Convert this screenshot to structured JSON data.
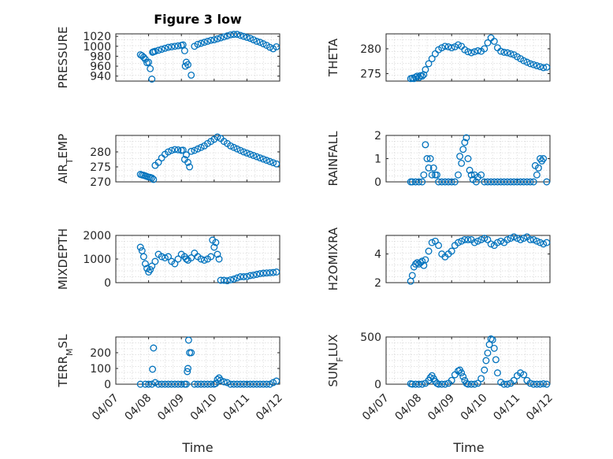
{
  "figure": {
    "title": "Figure 3 low",
    "marker_color": "#0072BD"
  },
  "chart_data": [
    {
      "type": "scatter",
      "ylabel": "PRESSURE",
      "title": "Figure 3 low",
      "xlim": [
        0,
        5
      ],
      "ylim": [
        930,
        1025
      ],
      "yticks": [
        940,
        960,
        980,
        1000,
        1020
      ],
      "grid": true,
      "x": [
        0.75,
        0.8,
        0.85,
        0.9,
        0.95,
        1.0,
        1.05,
        1.1,
        1.12,
        1.15,
        1.2,
        1.3,
        1.4,
        1.5,
        1.6,
        1.7,
        1.8,
        1.9,
        2.0,
        2.05,
        2.1,
        2.12,
        2.15,
        2.2,
        2.3,
        2.4,
        2.5,
        2.6,
        2.7,
        2.8,
        2.9,
        3.0,
        3.1,
        3.2,
        3.3,
        3.4,
        3.5,
        3.6,
        3.7,
        3.8,
        3.9,
        4.0,
        4.1,
        4.2,
        4.3,
        4.4,
        4.5,
        4.6,
        4.7,
        4.8,
        4.9
      ],
      "y": [
        983,
        981,
        978,
        974,
        967,
        968,
        955,
        934,
        988,
        989,
        990,
        992,
        994,
        996,
        998,
        999,
        1000,
        1001,
        1002,
        1003,
        991,
        960,
        968,
        963,
        942,
        1000,
        1004,
        1006,
        1008,
        1010,
        1012,
        1013,
        1015,
        1017,
        1019,
        1021,
        1023,
        1024,
        1024,
        1022,
        1020,
        1018,
        1016,
        1013,
        1010,
        1008,
        1005,
        1002,
        998,
        995,
        999
      ]
    },
    {
      "type": "scatter",
      "ylabel": "THETA",
      "xlim": [
        0,
        5
      ],
      "ylim": [
        273.5,
        283
      ],
      "yticks": [
        275,
        280
      ],
      "grid": true,
      "x": [
        0.75,
        0.8,
        0.85,
        0.9,
        0.95,
        1.0,
        1.05,
        1.1,
        1.15,
        1.2,
        1.3,
        1.4,
        1.5,
        1.6,
        1.7,
        1.8,
        1.9,
        2.0,
        2.1,
        2.2,
        2.3,
        2.4,
        2.5,
        2.6,
        2.7,
        2.8,
        2.9,
        3.0,
        3.1,
        3.2,
        3.3,
        3.4,
        3.5,
        3.6,
        3.7,
        3.8,
        3.9,
        4.0,
        4.1,
        4.2,
        4.3,
        4.4,
        4.5,
        4.6,
        4.7,
        4.8,
        4.9
      ],
      "y": [
        274.0,
        274.1,
        274.0,
        274.3,
        274.5,
        274.2,
        274.6,
        274.5,
        274.8,
        275.8,
        277.0,
        278.0,
        279.0,
        279.8,
        280.2,
        280.5,
        280.4,
        280.2,
        280.4,
        280.8,
        280.5,
        279.8,
        279.4,
        279.2,
        279.4,
        279.6,
        279.5,
        280.0,
        281.2,
        282.2,
        281.5,
        280.2,
        279.5,
        279.3,
        279.2,
        279.0,
        278.8,
        278.4,
        278.0,
        277.6,
        277.3,
        277.0,
        276.8,
        276.6,
        276.4,
        276.2,
        276.3
      ]
    },
    {
      "type": "scatter",
      "ylabel": "AIR_TEMP",
      "xlim": [
        0,
        5
      ],
      "ylim": [
        270,
        285.5
      ],
      "yticks": [
        270,
        275,
        280
      ],
      "grid": true,
      "x": [
        0.75,
        0.8,
        0.85,
        0.9,
        0.95,
        1.0,
        1.05,
        1.1,
        1.15,
        1.2,
        1.3,
        1.4,
        1.5,
        1.6,
        1.7,
        1.8,
        1.9,
        2.0,
        2.05,
        2.1,
        2.15,
        2.2,
        2.25,
        2.3,
        2.4,
        2.5,
        2.6,
        2.7,
        2.8,
        2.9,
        3.0,
        3.1,
        3.2,
        3.3,
        3.4,
        3.5,
        3.6,
        3.7,
        3.8,
        3.9,
        4.0,
        4.1,
        4.2,
        4.3,
        4.4,
        4.5,
        4.6,
        4.7,
        4.8,
        4.9
      ],
      "y": [
        272.5,
        272.3,
        272.2,
        272.0,
        271.8,
        271.6,
        271.5,
        271.3,
        270.8,
        275.5,
        276.5,
        278.0,
        279.2,
        280.0,
        280.5,
        280.8,
        280.7,
        280.5,
        280.6,
        277.5,
        279.0,
        276.5,
        275.0,
        280.2,
        280.5,
        281.0,
        281.5,
        282.0,
        282.8,
        283.5,
        284.2,
        285.0,
        284.5,
        283.5,
        282.8,
        282.0,
        281.5,
        281.0,
        280.5,
        280.0,
        279.6,
        279.2,
        278.8,
        278.4,
        278.0,
        277.6,
        277.2,
        276.8,
        276.4,
        276.0
      ]
    },
    {
      "type": "scatter",
      "ylabel": "RAINFALL",
      "xlim": [
        0,
        5
      ],
      "ylim": [
        0,
        2
      ],
      "yticks": [
        0,
        1,
        2
      ],
      "grid": true,
      "x": [
        0.75,
        0.8,
        0.9,
        1.0,
        1.1,
        1.15,
        1.2,
        1.25,
        1.3,
        1.35,
        1.4,
        1.45,
        1.5,
        1.55,
        1.6,
        1.7,
        1.8,
        1.9,
        2.0,
        2.1,
        2.2,
        2.25,
        2.3,
        2.35,
        2.4,
        2.45,
        2.5,
        2.55,
        2.6,
        2.65,
        2.7,
        2.75,
        2.8,
        2.9,
        3.0,
        3.1,
        3.2,
        3.3,
        3.4,
        3.5,
        3.6,
        3.7,
        3.8,
        3.9,
        4.0,
        4.1,
        4.2,
        4.3,
        4.4,
        4.5,
        4.55,
        4.6,
        4.65,
        4.7,
        4.75,
        4.8,
        4.9
      ],
      "y": [
        0,
        0,
        0,
        0,
        0,
        0.3,
        1.6,
        1.0,
        0.6,
        1.0,
        0.3,
        0.6,
        0.3,
        0.3,
        0,
        0,
        0,
        0,
        0,
        0,
        0.3,
        1.1,
        0.8,
        1.4,
        1.7,
        1.9,
        1.0,
        0.5,
        0.3,
        0.1,
        0.3,
        0,
        0.2,
        0.3,
        0,
        0,
        0,
        0,
        0,
        0,
        0,
        0,
        0,
        0,
        0,
        0,
        0,
        0,
        0,
        0,
        0.7,
        0.3,
        0.6,
        1.0,
        0.9,
        1.0,
        0
      ]
    },
    {
      "type": "scatter",
      "ylabel": "MIXDEPTH",
      "xlim": [
        0,
        5
      ],
      "ylim": [
        0,
        2000
      ],
      "yticks": [
        0,
        1000,
        2000
      ],
      "grid": true,
      "x": [
        0.75,
        0.8,
        0.85,
        0.9,
        0.95,
        1.0,
        1.05,
        1.1,
        1.2,
        1.3,
        1.4,
        1.5,
        1.6,
        1.7,
        1.8,
        1.9,
        2.0,
        2.1,
        2.15,
        2.2,
        2.3,
        2.4,
        2.5,
        2.6,
        2.7,
        2.8,
        2.9,
        2.95,
        3.0,
        3.05,
        3.1,
        3.15,
        3.2,
        3.3,
        3.4,
        3.5,
        3.6,
        3.7,
        3.8,
        3.9,
        4.0,
        4.1,
        4.2,
        4.3,
        4.4,
        4.5,
        4.6,
        4.7,
        4.8,
        4.9
      ],
      "y": [
        1500,
        1350,
        1100,
        800,
        600,
        450,
        550,
        700,
        900,
        1200,
        1100,
        1050,
        1100,
        900,
        800,
        1000,
        1200,
        1100,
        1000,
        950,
        1050,
        1250,
        1100,
        1000,
        950,
        1000,
        1100,
        1800,
        1500,
        1700,
        1200,
        1000,
        100,
        100,
        80,
        120,
        150,
        200,
        250,
        250,
        260,
        300,
        320,
        350,
        380,
        400,
        410,
        420,
        430,
        450
      ]
    },
    {
      "type": "scatter",
      "ylabel": "H2OMIXRA",
      "xlim": [
        0,
        5
      ],
      "ylim": [
        2,
        5.3
      ],
      "yticks": [
        2,
        4
      ],
      "grid": true,
      "x": [
        0.75,
        0.8,
        0.85,
        0.9,
        0.95,
        1.0,
        1.05,
        1.1,
        1.15,
        1.2,
        1.3,
        1.4,
        1.5,
        1.6,
        1.7,
        1.8,
        1.9,
        2.0,
        2.1,
        2.2,
        2.3,
        2.4,
        2.5,
        2.6,
        2.7,
        2.8,
        2.9,
        3.0,
        3.1,
        3.2,
        3.3,
        3.4,
        3.5,
        3.6,
        3.7,
        3.8,
        3.9,
        4.0,
        4.1,
        4.2,
        4.3,
        4.4,
        4.5,
        4.6,
        4.7,
        4.8,
        4.9
      ],
      "y": [
        2.1,
        2.5,
        3.1,
        3.3,
        3.4,
        3.3,
        3.4,
        3.5,
        3.2,
        3.6,
        4.2,
        4.8,
        4.9,
        4.6,
        4.0,
        3.8,
        4.0,
        4.2,
        4.6,
        4.8,
        4.9,
        5.0,
        5.0,
        5.0,
        4.8,
        4.9,
        5.0,
        5.1,
        5.0,
        4.7,
        4.6,
        4.8,
        4.9,
        4.8,
        5.0,
        5.1,
        5.2,
        5.1,
        5.0,
        5.1,
        5.2,
        5.0,
        5.0,
        4.9,
        4.8,
        4.7,
        4.8
      ]
    },
    {
      "type": "scatter",
      "ylabel": "TERR_MSL",
      "xlim": [
        0,
        5
      ],
      "ylim": [
        0,
        300
      ],
      "yticks": [
        0,
        100,
        200
      ],
      "grid": true,
      "x": [
        0.75,
        0.9,
        1.0,
        1.1,
        1.12,
        1.15,
        1.2,
        1.3,
        1.4,
        1.5,
        1.6,
        1.7,
        1.8,
        1.9,
        2.0,
        2.1,
        2.15,
        2.18,
        2.2,
        2.22,
        2.25,
        2.3,
        2.4,
        2.5,
        2.6,
        2.7,
        2.8,
        2.9,
        3.0,
        3.05,
        3.1,
        3.15,
        3.2,
        3.3,
        3.4,
        3.5,
        3.6,
        3.7,
        3.8,
        3.9,
        4.0,
        4.1,
        4.2,
        4.3,
        4.4,
        4.5,
        4.6,
        4.7,
        4.8,
        4.9
      ],
      "y": [
        0,
        0,
        0,
        0,
        95,
        230,
        10,
        0,
        0,
        0,
        0,
        0,
        0,
        0,
        0,
        0,
        0,
        80,
        100,
        280,
        200,
        200,
        0,
        0,
        0,
        0,
        0,
        0,
        0,
        5,
        30,
        40,
        25,
        15,
        10,
        0,
        0,
        0,
        0,
        0,
        0,
        0,
        0,
        0,
        0,
        0,
        0,
        0,
        10,
        20
      ]
    },
    {
      "type": "scatter",
      "ylabel": "SUN_FLUX",
      "xlim": [
        0,
        5
      ],
      "ylim": [
        0,
        500
      ],
      "yticks": [
        0,
        500
      ],
      "grid": true,
      "x": [
        0.75,
        0.8,
        0.9,
        1.0,
        1.1,
        1.2,
        1.3,
        1.35,
        1.4,
        1.45,
        1.5,
        1.55,
        1.6,
        1.7,
        1.8,
        1.9,
        2.0,
        2.1,
        2.2,
        2.25,
        2.3,
        2.35,
        2.4,
        2.45,
        2.5,
        2.6,
        2.7,
        2.8,
        2.9,
        3.0,
        3.05,
        3.1,
        3.15,
        3.2,
        3.25,
        3.3,
        3.35,
        3.4,
        3.5,
        3.6,
        3.7,
        3.8,
        3.9,
        4.0,
        4.1,
        4.2,
        4.3,
        4.4,
        4.5,
        4.6,
        4.7,
        4.8,
        4.9
      ],
      "y": [
        5,
        0,
        0,
        0,
        0,
        10,
        40,
        70,
        90,
        60,
        30,
        10,
        0,
        0,
        0,
        10,
        40,
        100,
        140,
        150,
        120,
        80,
        40,
        10,
        0,
        0,
        0,
        10,
        60,
        150,
        250,
        330,
        420,
        480,
        470,
        380,
        260,
        120,
        20,
        0,
        0,
        10,
        40,
        90,
        120,
        100,
        40,
        10,
        0,
        0,
        0,
        5,
        0
      ]
    }
  ],
  "x_axis": {
    "tick_labels": [
      "04/07",
      "04/08",
      "04/09",
      "04/10",
      "04/11",
      "04/12"
    ],
    "label": "Time"
  }
}
